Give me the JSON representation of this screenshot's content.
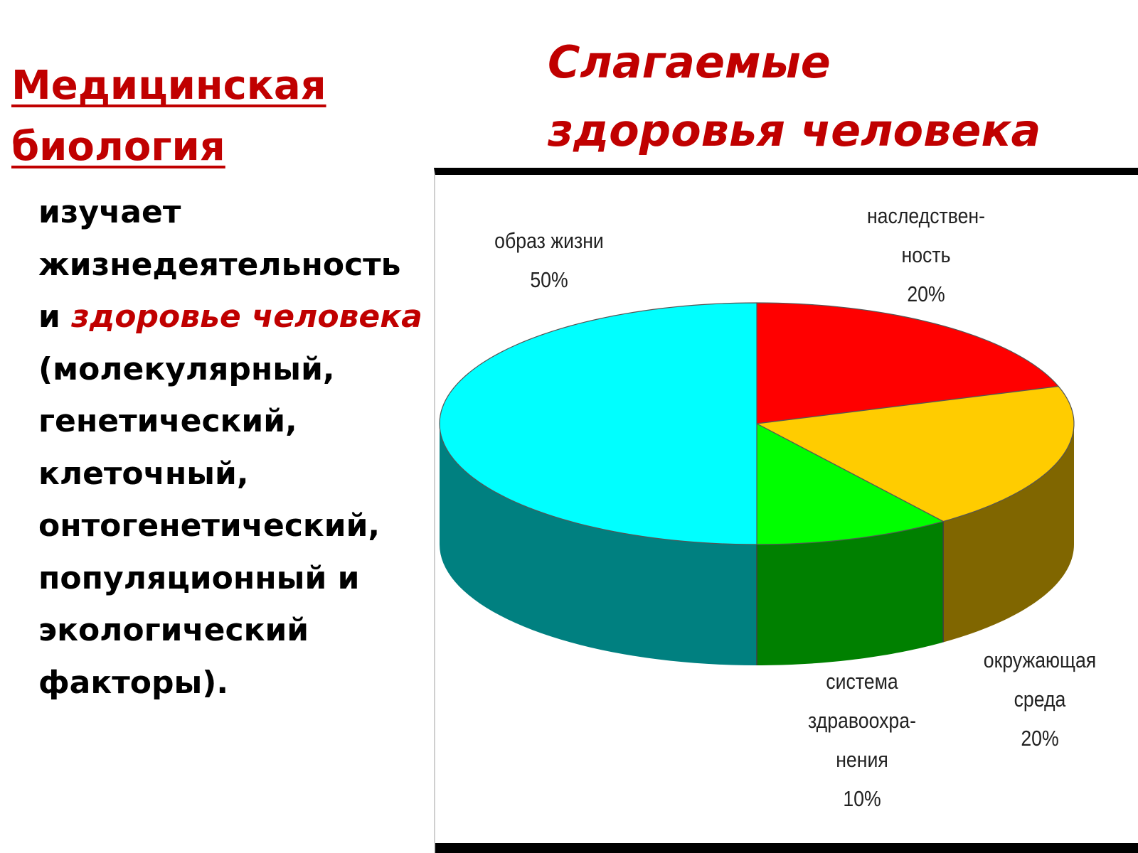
{
  "slide": {
    "left_title": {
      "line1": "Медицинская",
      "line2": "биология"
    },
    "body": {
      "part1": "изучает жизнедеятельность и ",
      "accent": "здоровье человека",
      "part2": " (молекулярный, генетический, клеточный, онтогенетический, популяционный и экологический факторы)."
    }
  },
  "chart_data": {
    "type": "pie",
    "title_line1": "Слагаемые",
    "title_line2": "здоровья  человека",
    "three_d": true,
    "slices": [
      {
        "name_lines": [
          "наследствен-",
          "ность"
        ],
        "value": 20,
        "value_label": "20%",
        "color": "#ff0000",
        "side_color": "#990000"
      },
      {
        "name_lines": [
          "окружающая",
          "среда"
        ],
        "value": 20,
        "value_label": "20%",
        "color": "#ffcc00",
        "side_color": "#806600"
      },
      {
        "name_lines": [
          "система",
          "здравоохра-",
          "нения"
        ],
        "value": 10,
        "value_label": "10%",
        "color": "#00ff00",
        "side_color": "#008000"
      },
      {
        "name_lines": [
          "образ жизни"
        ],
        "value": 50,
        "value_label": "50%",
        "color": "#00ffff",
        "side_color": "#008080"
      }
    ]
  }
}
